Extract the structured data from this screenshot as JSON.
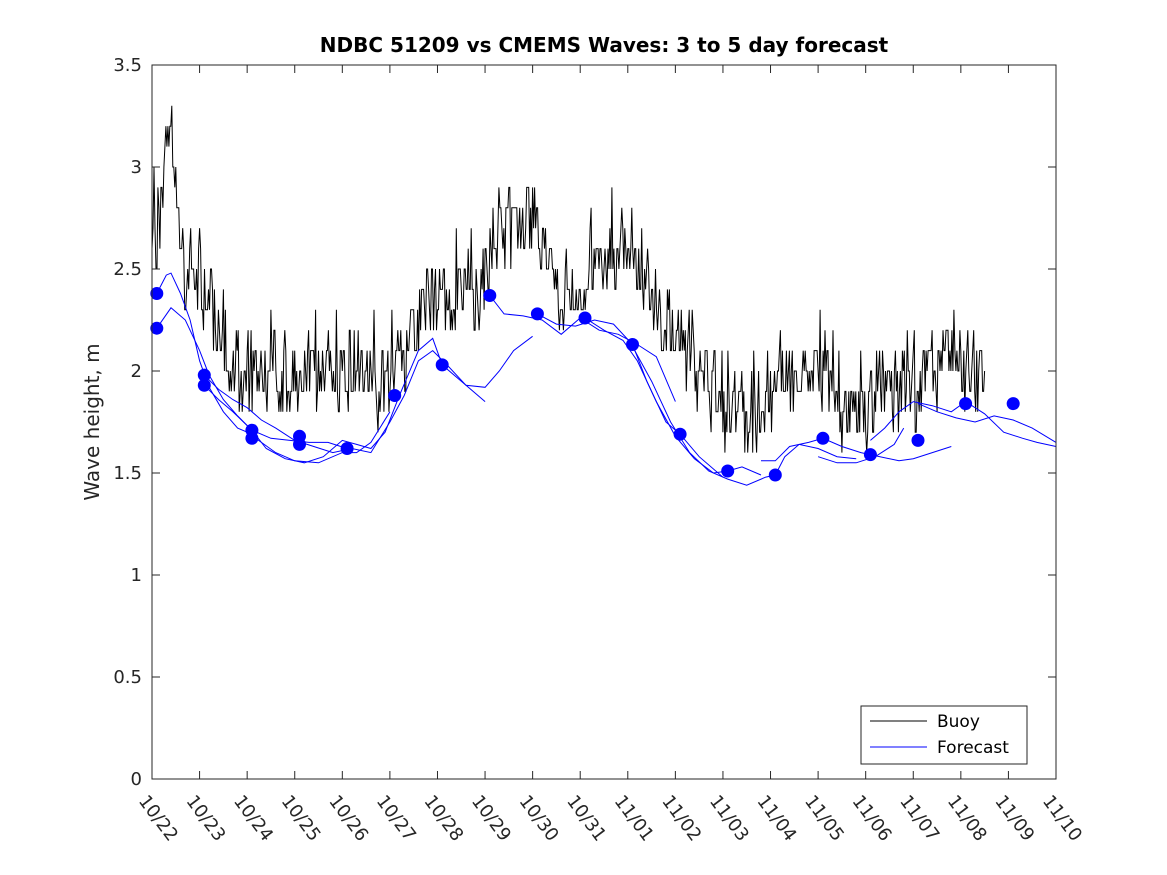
{
  "chart_data": {
    "type": "line",
    "title": "NDBC 51209 vs CMEMS Waves: 3 to 5 day forecast",
    "xlabel": "",
    "ylabel": "Wave height, m",
    "xlim": [
      0,
      19
    ],
    "ylim": [
      0,
      3.5
    ],
    "x_tick_labels": [
      "10/22",
      "10/23",
      "10/24",
      "10/25",
      "10/26",
      "10/27",
      "10/28",
      "10/29",
      "10/30",
      "10/31",
      "11/01",
      "11/02",
      "11/03",
      "11/04",
      "11/05",
      "11/06",
      "11/07",
      "11/08",
      "11/09",
      "11/10"
    ],
    "y_tick_labels": [
      "0",
      "0.5",
      "1",
      "1.5",
      "2",
      "2.5",
      "3",
      "3.5"
    ],
    "y_ticks": [
      0,
      0.5,
      1,
      1.5,
      2,
      2.5,
      3,
      3.5
    ],
    "legend": {
      "position": "bottom-right",
      "entries": [
        "Buoy",
        "Forecast"
      ]
    },
    "colors": {
      "buoy": "#000000",
      "forecast": "#0000ff",
      "axis": "#262626"
    },
    "buoy_keypoints": [
      [
        0.0,
        2.8
      ],
      [
        0.1,
        2.7
      ],
      [
        0.2,
        2.9
      ],
      [
        0.3,
        3.0
      ],
      [
        0.4,
        3.2
      ],
      [
        0.5,
        2.9
      ],
      [
        0.6,
        2.7
      ],
      [
        0.7,
        2.4
      ],
      [
        0.8,
        2.6
      ],
      [
        0.9,
        2.5
      ],
      [
        1.0,
        2.5
      ],
      [
        1.1,
        2.4
      ],
      [
        1.2,
        2.4
      ],
      [
        1.3,
        2.3
      ],
      [
        1.4,
        2.2
      ],
      [
        1.5,
        2.2
      ],
      [
        1.6,
        2.1
      ],
      [
        1.7,
        2.0
      ],
      [
        1.8,
        2.0
      ],
      [
        1.9,
        2.0
      ],
      [
        2.0,
        2.0
      ],
      [
        2.2,
        2.0
      ],
      [
        2.4,
        2.0
      ],
      [
        2.5,
        2.05
      ],
      [
        2.6,
        2.1
      ],
      [
        2.7,
        2.0
      ],
      [
        2.8,
        1.95
      ],
      [
        3.0,
        1.95
      ],
      [
        3.3,
        1.95
      ],
      [
        3.6,
        1.95
      ],
      [
        4.0,
        1.95
      ],
      [
        4.3,
        1.95
      ],
      [
        4.5,
        1.95
      ],
      [
        4.6,
        2.0
      ],
      [
        4.7,
        1.95
      ],
      [
        4.8,
        1.85
      ],
      [
        4.9,
        1.95
      ],
      [
        5.0,
        2.0
      ],
      [
        5.3,
        2.1
      ],
      [
        5.5,
        2.2
      ],
      [
        5.8,
        2.3
      ],
      [
        6.0,
        2.35
      ],
      [
        6.3,
        2.4
      ],
      [
        6.6,
        2.4
      ],
      [
        6.8,
        2.4
      ],
      [
        7.0,
        2.5
      ],
      [
        7.2,
        2.6
      ],
      [
        7.4,
        2.7
      ],
      [
        7.6,
        2.65
      ],
      [
        7.8,
        2.75
      ],
      [
        8.0,
        2.8
      ],
      [
        8.2,
        2.6
      ],
      [
        8.4,
        2.5
      ],
      [
        8.6,
        2.4
      ],
      [
        8.8,
        2.4
      ],
      [
        9.0,
        2.4
      ],
      [
        9.2,
        2.45
      ],
      [
        9.4,
        2.5
      ],
      [
        9.6,
        2.55
      ],
      [
        9.8,
        2.65
      ],
      [
        10.0,
        2.6
      ],
      [
        10.2,
        2.5
      ],
      [
        10.4,
        2.4
      ],
      [
        10.6,
        2.3
      ],
      [
        10.8,
        2.2
      ],
      [
        11.0,
        2.15
      ],
      [
        11.2,
        2.1
      ],
      [
        11.4,
        2.05
      ],
      [
        11.6,
        2.0
      ],
      [
        11.8,
        1.9
      ],
      [
        12.0,
        1.8
      ],
      [
        12.2,
        1.85
      ],
      [
        12.4,
        1.85
      ],
      [
        12.6,
        1.8
      ],
      [
        12.8,
        1.8
      ],
      [
        13.0,
        1.9
      ],
      [
        13.2,
        1.95
      ],
      [
        13.4,
        2.0
      ],
      [
        13.6,
        2.0
      ],
      [
        13.8,
        2.0
      ],
      [
        14.0,
        1.95
      ],
      [
        14.2,
        1.95
      ],
      [
        14.4,
        1.85
      ],
      [
        14.6,
        1.8
      ],
      [
        14.8,
        1.75
      ],
      [
        15.0,
        1.75
      ],
      [
        15.2,
        1.85
      ],
      [
        15.4,
        1.85
      ],
      [
        15.6,
        1.85
      ],
      [
        15.8,
        1.85
      ],
      [
        16.0,
        1.85
      ],
      [
        16.2,
        1.95
      ],
      [
        16.4,
        2.0
      ],
      [
        16.6,
        2.05
      ],
      [
        16.8,
        2.1
      ],
      [
        17.0,
        2.05
      ],
      [
        17.2,
        2.0
      ],
      [
        17.4,
        2.0
      ],
      [
        17.5,
        2.0
      ]
    ],
    "forecast_segments": [
      [
        [
          0.1,
          2.38
        ],
        [
          0.3,
          2.47
        ],
        [
          0.4,
          2.48
        ],
        [
          0.6,
          2.38
        ],
        [
          0.8,
          2.25
        ],
        [
          1.0,
          2.05
        ],
        [
          1.2,
          1.92
        ],
        [
          1.5,
          1.8
        ],
        [
          1.8,
          1.72
        ],
        [
          2.0,
          1.7
        ],
        [
          2.3,
          1.65
        ],
        [
          2.6,
          1.6
        ],
        [
          3.0,
          1.56
        ],
        [
          3.5,
          1.55
        ],
        [
          4.0,
          1.6
        ],
        [
          4.3,
          1.6
        ],
        [
          4.6,
          1.65
        ],
        [
          5.0,
          1.8
        ]
      ],
      [
        [
          0.1,
          2.21
        ],
        [
          0.4,
          2.31
        ],
        [
          0.7,
          2.25
        ],
        [
          1.0,
          2.1
        ],
        [
          1.2,
          1.98
        ],
        [
          1.5,
          1.86
        ],
        [
          1.8,
          1.78
        ],
        [
          2.1,
          1.71
        ],
        [
          2.4,
          1.62
        ],
        [
          2.8,
          1.57
        ],
        [
          3.2,
          1.55
        ],
        [
          3.6,
          1.58
        ],
        [
          4.0,
          1.66
        ],
        [
          4.3,
          1.64
        ],
        [
          4.6,
          1.62
        ],
        [
          4.9,
          1.7
        ],
        [
          5.2,
          1.88
        ],
        [
          5.6,
          2.1
        ],
        [
          5.9,
          2.16
        ],
        [
          6.1,
          2.03
        ],
        [
          6.5,
          1.95
        ],
        [
          7.0,
          1.85
        ]
      ],
      [
        [
          1.1,
          1.98
        ],
        [
          1.4,
          1.91
        ],
        [
          1.7,
          1.86
        ],
        [
          2.0,
          1.82
        ],
        [
          2.3,
          1.76
        ],
        [
          2.6,
          1.72
        ],
        [
          3.0,
          1.66
        ],
        [
          3.4,
          1.63
        ],
        [
          3.8,
          1.6
        ],
        [
          4.2,
          1.62
        ],
        [
          4.6,
          1.6
        ],
        [
          5.0,
          1.75
        ],
        [
          5.3,
          1.88
        ],
        [
          5.6,
          2.05
        ],
        [
          5.9,
          2.1
        ],
        [
          6.2,
          2.03
        ],
        [
          6.6,
          1.93
        ],
        [
          7.0,
          1.92
        ],
        [
          7.3,
          2.0
        ],
        [
          7.6,
          2.1
        ],
        [
          8.0,
          2.17
        ]
      ],
      [
        [
          1.1,
          1.93
        ],
        [
          1.4,
          1.86
        ],
        [
          1.7,
          1.8
        ],
        [
          2.1,
          1.71
        ],
        [
          2.5,
          1.67
        ],
        [
          2.9,
          1.66
        ],
        [
          3.3,
          1.65
        ],
        [
          3.7,
          1.65
        ],
        [
          4.1,
          1.62
        ]
      ],
      [
        [
          7.1,
          2.37
        ],
        [
          7.4,
          2.28
        ],
        [
          7.8,
          2.27
        ],
        [
          8.2,
          2.25
        ],
        [
          8.6,
          2.18
        ],
        [
          9.0,
          2.26
        ],
        [
          9.4,
          2.2
        ],
        [
          9.8,
          2.18
        ],
        [
          10.2,
          2.13
        ],
        [
          10.6,
          2.07
        ],
        [
          11.0,
          1.85
        ]
      ],
      [
        [
          8.1,
          2.28
        ],
        [
          8.5,
          2.23
        ],
        [
          8.9,
          2.22
        ],
        [
          9.3,
          2.25
        ],
        [
          9.7,
          2.23
        ],
        [
          10.1,
          2.13
        ],
        [
          10.4,
          1.95
        ],
        [
          10.8,
          1.75
        ],
        [
          11.1,
          1.69
        ],
        [
          11.5,
          1.58
        ],
        [
          12.0,
          1.48
        ]
      ],
      [
        [
          9.1,
          2.26
        ],
        [
          9.5,
          2.2
        ],
        [
          9.9,
          2.15
        ],
        [
          10.2,
          2.05
        ],
        [
          10.6,
          1.85
        ],
        [
          11.0,
          1.68
        ],
        [
          11.4,
          1.57
        ],
        [
          11.8,
          1.5
        ],
        [
          12.1,
          1.51
        ],
        [
          12.4,
          1.53
        ],
        [
          12.8,
          1.49
        ]
      ],
      [
        [
          10.1,
          2.12
        ],
        [
          10.5,
          1.95
        ],
        [
          10.9,
          1.75
        ],
        [
          11.3,
          1.6
        ],
        [
          11.7,
          1.51
        ],
        [
          12.1,
          1.47
        ],
        [
          12.5,
          1.44
        ],
        [
          12.9,
          1.48
        ],
        [
          13.1,
          1.49
        ],
        [
          13.3,
          1.58
        ],
        [
          13.6,
          1.64
        ],
        [
          14.0,
          1.62
        ],
        [
          14.4,
          1.58
        ],
        [
          14.8,
          1.57
        ]
      ],
      [
        [
          12.8,
          1.56
        ],
        [
          13.1,
          1.56
        ],
        [
          13.4,
          1.63
        ],
        [
          13.8,
          1.65
        ],
        [
          14.1,
          1.67
        ],
        [
          14.5,
          1.63
        ],
        [
          14.9,
          1.6
        ],
        [
          15.3,
          1.58
        ],
        [
          15.7,
          1.56
        ],
        [
          16.0,
          1.57
        ],
        [
          16.4,
          1.6
        ],
        [
          16.8,
          1.63
        ]
      ],
      [
        [
          15.1,
          1.66
        ],
        [
          15.4,
          1.72
        ],
        [
          15.7,
          1.8
        ],
        [
          16.0,
          1.85
        ],
        [
          16.4,
          1.83
        ],
        [
          16.8,
          1.8
        ],
        [
          17.1,
          1.85
        ],
        [
          17.5,
          1.79
        ],
        [
          17.9,
          1.7
        ],
        [
          18.3,
          1.67
        ],
        [
          18.6,
          1.65
        ],
        [
          19.0,
          1.63
        ]
      ],
      [
        [
          16.1,
          1.84
        ],
        [
          16.5,
          1.8
        ],
        [
          16.9,
          1.77
        ],
        [
          17.3,
          1.75
        ],
        [
          17.7,
          1.78
        ],
        [
          18.1,
          1.76
        ],
        [
          18.5,
          1.72
        ],
        [
          19.0,
          1.65
        ]
      ],
      [
        [
          14.0,
          1.58
        ],
        [
          14.4,
          1.55
        ],
        [
          14.8,
          1.55
        ],
        [
          15.2,
          1.58
        ],
        [
          15.6,
          1.64
        ],
        [
          15.8,
          1.72
        ]
      ]
    ],
    "forecast_markers": [
      [
        0.1,
        2.38
      ],
      [
        0.1,
        2.21
      ],
      [
        1.1,
        1.98
      ],
      [
        1.1,
        1.93
      ],
      [
        2.1,
        1.71
      ],
      [
        2.1,
        1.67
      ],
      [
        3.1,
        1.68
      ],
      [
        3.1,
        1.64
      ],
      [
        4.1,
        1.62
      ],
      [
        5.1,
        1.88
      ],
      [
        6.1,
        2.03
      ],
      [
        7.1,
        2.37
      ],
      [
        8.1,
        2.28
      ],
      [
        9.1,
        2.26
      ],
      [
        10.1,
        2.13
      ],
      [
        11.1,
        1.69
      ],
      [
        12.1,
        1.51
      ],
      [
        13.1,
        1.49
      ],
      [
        14.1,
        1.67
      ],
      [
        15.1,
        1.59
      ],
      [
        16.1,
        1.66
      ],
      [
        17.1,
        1.84
      ],
      [
        18.1,
        1.84
      ]
    ]
  }
}
